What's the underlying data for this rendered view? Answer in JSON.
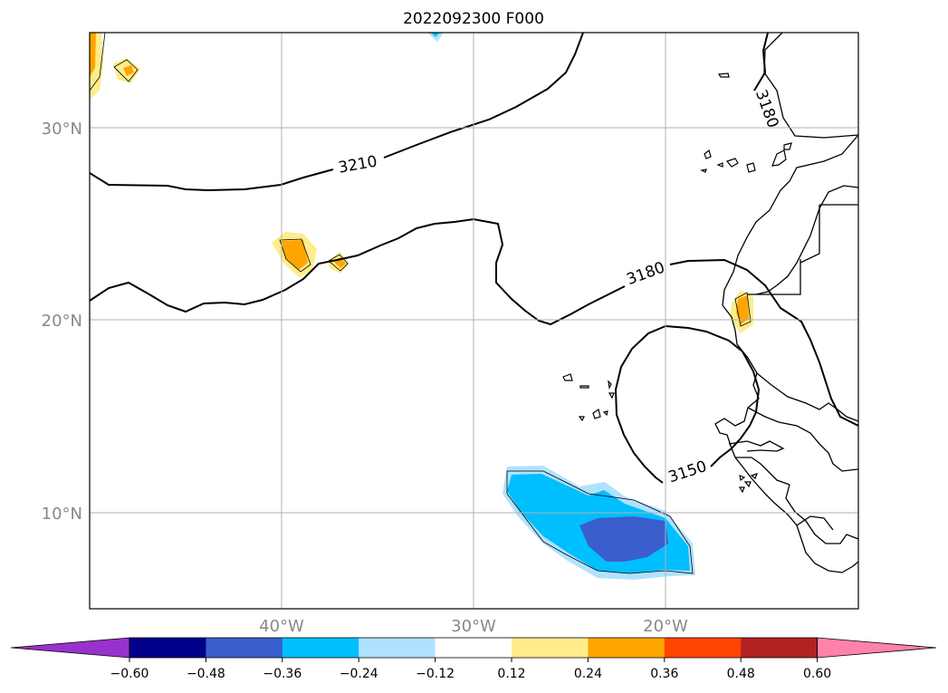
{
  "title": "2022092300 F000",
  "map": {
    "extent": {
      "lon": [
        -50,
        -10
      ],
      "lat": [
        5,
        35
      ]
    },
    "lat_ticks": [
      "30°N",
      "20°N",
      "10°N"
    ],
    "lon_ticks": [
      "40°W",
      "30°W",
      "20°W"
    ],
    "contour_labels": [
      "3210",
      "3180",
      "3180",
      "3150"
    ]
  },
  "colorbar": {
    "ticks": [
      "−0.60",
      "−0.48",
      "−0.36",
      "−0.24",
      "−0.12",
      "0.12",
      "0.24",
      "0.36",
      "0.48",
      "0.60"
    ],
    "colors": [
      "#9932cc",
      "#00008b",
      "#3a5fcd",
      "#00bfff",
      "#b0e2ff",
      "#ffffff",
      "#ffec8b",
      "#ffa500",
      "#ff4500",
      "#b22222",
      "#ff82ab"
    ]
  },
  "colors": {
    "contour": "#000000",
    "grid": "#b0b0b0",
    "tick_label": "#888888"
  }
}
